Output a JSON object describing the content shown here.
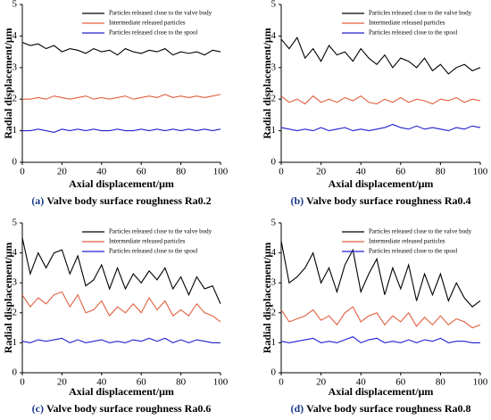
{
  "chart_data": [
    {
      "type": "line",
      "x_label": "Axial displacement/μm",
      "y_label": "Radial displacement/μm",
      "caption_label": "(a)",
      "caption": "Valve body surface roughness Ra0.2",
      "xlim": [
        0,
        100
      ],
      "ylim": [
        0,
        5
      ],
      "xticks": [
        0,
        20,
        40,
        60,
        80,
        100
      ],
      "yticks": [
        0,
        1,
        2,
        3,
        4,
        5
      ],
      "x": [
        0,
        4,
        8,
        12,
        16,
        20,
        24,
        28,
        32,
        36,
        40,
        44,
        48,
        52,
        56,
        60,
        64,
        68,
        72,
        76,
        80,
        84,
        88,
        92,
        96,
        100
      ],
      "series": [
        {
          "name": "Particles released close to the valve body",
          "color": "#000000",
          "values": [
            3.8,
            3.7,
            3.75,
            3.6,
            3.7,
            3.5,
            3.6,
            3.55,
            3.45,
            3.6,
            3.5,
            3.55,
            3.4,
            3.6,
            3.5,
            3.45,
            3.55,
            3.5,
            3.6,
            3.4,
            3.5,
            3.45,
            3.5,
            3.4,
            3.55,
            3.5
          ]
        },
        {
          "name": "Intermediate released particles",
          "color": "#e06040",
          "values": [
            2.0,
            2.0,
            2.05,
            2.0,
            2.1,
            2.05,
            2.0,
            2.05,
            2.1,
            2.0,
            2.05,
            2.0,
            2.05,
            2.1,
            2.0,
            2.05,
            2.1,
            2.05,
            2.15,
            2.05,
            2.1,
            2.05,
            2.1,
            2.05,
            2.1,
            2.15
          ]
        },
        {
          "name": "Particles released close to the spool",
          "color": "#2020d0",
          "values": [
            1.0,
            1.0,
            1.05,
            1.0,
            0.95,
            1.05,
            1.0,
            1.05,
            1.0,
            1.05,
            1.0,
            1.0,
            1.05,
            1.0,
            1.0,
            1.05,
            1.0,
            1.05,
            1.0,
            1.05,
            1.0,
            1.05,
            1.0,
            1.05,
            1.0,
            1.05
          ]
        }
      ]
    },
    {
      "type": "line",
      "x_label": "Axial displacement/μm",
      "y_label": "Radial displacement/μm",
      "caption_label": "(b)",
      "caption": "Valve body surface roughness Ra0.4",
      "xlim": [
        0,
        100
      ],
      "ylim": [
        0,
        5
      ],
      "xticks": [
        0,
        20,
        40,
        60,
        80,
        100
      ],
      "yticks": [
        0,
        1,
        2,
        3,
        4,
        5
      ],
      "x": [
        0,
        4,
        8,
        12,
        16,
        20,
        24,
        28,
        32,
        36,
        40,
        44,
        48,
        52,
        56,
        60,
        64,
        68,
        72,
        76,
        80,
        84,
        88,
        92,
        96,
        100
      ],
      "series": [
        {
          "name": "Particles released close to the valve body",
          "color": "#000000",
          "values": [
            3.9,
            3.6,
            3.95,
            3.3,
            3.6,
            3.2,
            3.7,
            3.4,
            3.5,
            3.2,
            3.6,
            3.3,
            3.1,
            3.4,
            3.0,
            3.3,
            3.2,
            3.0,
            3.3,
            2.9,
            3.1,
            2.8,
            3.0,
            3.1,
            2.9,
            3.0
          ]
        },
        {
          "name": "Intermediate released particles",
          "color": "#e06040",
          "values": [
            2.1,
            1.9,
            2.0,
            1.85,
            2.1,
            1.9,
            2.0,
            1.9,
            2.05,
            1.95,
            2.1,
            1.9,
            1.85,
            2.0,
            1.9,
            2.05,
            1.9,
            2.0,
            1.95,
            1.85,
            2.0,
            1.95,
            2.05,
            1.9,
            2.0,
            1.95
          ]
        },
        {
          "name": "Particles released close to the spool",
          "color": "#2020d0",
          "values": [
            1.1,
            1.05,
            1.0,
            1.05,
            1.0,
            1.1,
            1.0,
            1.05,
            1.1,
            1.0,
            1.05,
            1.0,
            1.05,
            1.1,
            1.2,
            1.1,
            1.05,
            1.15,
            1.05,
            1.1,
            1.05,
            1.0,
            1.1,
            1.05,
            1.15,
            1.1
          ]
        }
      ]
    },
    {
      "type": "line",
      "x_label": "Axial displacement/μm",
      "y_label": "Radial displacement/μm",
      "caption_label": "(c)",
      "caption": "Valve body surface roughness Ra0.6",
      "xlim": [
        0,
        100
      ],
      "ylim": [
        0,
        5
      ],
      "xticks": [
        0,
        20,
        40,
        60,
        80,
        100
      ],
      "yticks": [
        0,
        1,
        2,
        3,
        4,
        5
      ],
      "x": [
        0,
        4,
        8,
        12,
        16,
        20,
        24,
        28,
        32,
        36,
        40,
        44,
        48,
        52,
        56,
        60,
        64,
        68,
        72,
        76,
        80,
        84,
        88,
        92,
        96,
        100
      ],
      "series": [
        {
          "name": "Particles released close to the valve body",
          "color": "#000000",
          "values": [
            4.5,
            3.3,
            4.0,
            3.5,
            4.0,
            4.1,
            3.3,
            3.9,
            2.9,
            3.1,
            3.6,
            2.8,
            3.5,
            2.8,
            3.3,
            3.0,
            3.4,
            3.1,
            3.5,
            2.8,
            3.2,
            2.6,
            3.2,
            2.8,
            2.9,
            2.3
          ]
        },
        {
          "name": "Intermediate released particles",
          "color": "#e06040",
          "values": [
            2.6,
            2.2,
            2.5,
            2.3,
            2.6,
            2.7,
            2.2,
            2.6,
            2.0,
            2.1,
            2.4,
            1.9,
            2.2,
            2.0,
            2.3,
            2.0,
            2.5,
            2.1,
            2.4,
            1.9,
            2.1,
            1.9,
            2.3,
            2.0,
            1.9,
            1.7
          ]
        },
        {
          "name": "Particles released close to the spool",
          "color": "#2020d0",
          "values": [
            1.05,
            1.0,
            1.1,
            1.05,
            1.1,
            1.15,
            1.0,
            1.1,
            1.0,
            1.05,
            1.1,
            1.0,
            1.05,
            1.0,
            1.1,
            1.05,
            1.15,
            1.05,
            1.15,
            1.0,
            1.1,
            1.0,
            1.1,
            1.05,
            1.0,
            1.0
          ]
        }
      ]
    },
    {
      "type": "line",
      "x_label": "Axial displacement/μm",
      "y_label": "Radial displacement/μm",
      "caption_label": "(d)",
      "caption": "Valve body surface roughness Ra0.8",
      "xlim": [
        0,
        100
      ],
      "ylim": [
        0,
        5
      ],
      "xticks": [
        0,
        20,
        40,
        60,
        80,
        100
      ],
      "yticks": [
        0,
        1,
        2,
        3,
        4,
        5
      ],
      "x": [
        0,
        4,
        8,
        12,
        16,
        20,
        24,
        28,
        32,
        36,
        40,
        44,
        48,
        52,
        56,
        60,
        64,
        68,
        72,
        76,
        80,
        84,
        88,
        92,
        96,
        100
      ],
      "series": [
        {
          "name": "Particles released close to the valve body",
          "color": "#000000",
          "values": [
            4.4,
            3.0,
            3.2,
            3.5,
            4.0,
            3.0,
            3.5,
            2.7,
            3.6,
            4.1,
            2.7,
            3.3,
            3.8,
            2.6,
            3.5,
            2.8,
            3.6,
            2.4,
            3.3,
            2.6,
            3.3,
            2.4,
            3.0,
            2.5,
            2.2,
            2.4
          ]
        },
        {
          "name": "Intermediate released particles",
          "color": "#e06040",
          "values": [
            2.1,
            1.7,
            1.8,
            1.9,
            2.1,
            1.75,
            1.9,
            1.6,
            2.0,
            2.2,
            1.7,
            1.9,
            2.0,
            1.6,
            1.9,
            1.7,
            2.0,
            1.55,
            1.85,
            1.6,
            1.9,
            1.6,
            1.8,
            1.7,
            1.5,
            1.6
          ]
        },
        {
          "name": "Particles released close to the spool",
          "color": "#2020d0",
          "values": [
            1.05,
            1.0,
            1.05,
            1.1,
            1.15,
            1.0,
            1.05,
            1.0,
            1.1,
            1.2,
            1.0,
            1.1,
            1.15,
            1.0,
            1.05,
            1.0,
            1.1,
            1.0,
            1.1,
            1.05,
            1.15,
            1.0,
            1.05,
            1.05,
            1.0,
            1.0
          ]
        }
      ]
    }
  ]
}
